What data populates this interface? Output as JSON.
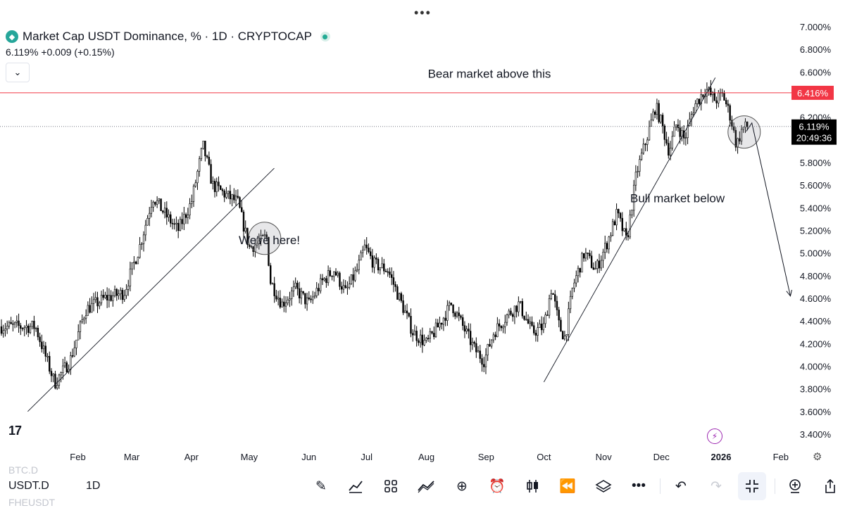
{
  "header": {
    "title": "Market Cap USDT Dominance, % · 1D · CRYPTOCAP",
    "price_line": "6.119%  +0.009 (+0.15%)"
  },
  "price_scale": {
    "ticks": [
      "7.000%",
      "6.800%",
      "6.600%",
      "6.400%",
      "6.200%",
      "6.000%",
      "5.800%",
      "5.600%",
      "5.400%",
      "5.200%",
      "5.000%",
      "4.800%",
      "4.600%",
      "4.400%",
      "4.200%",
      "4.000%",
      "3.800%",
      "3.600%",
      "3.400%"
    ],
    "red_line_label": "6.416%",
    "current_price_label": "6.119%",
    "countdown_label": "20:49:36"
  },
  "time_scale": {
    "labels": [
      "Feb",
      "Mar",
      "Apr",
      "May",
      "Jun",
      "Jul",
      "Aug",
      "Sep",
      "Oct",
      "Nov",
      "Dec",
      "2026",
      "Feb"
    ]
  },
  "annotations": {
    "bear": "Bear market above this",
    "here": "We're here!",
    "bull": "Bull market below"
  },
  "colors": {
    "resistance_line": "#f23645",
    "candle": "#000000",
    "price_badge": "#000000"
  },
  "bottom_bar": {
    "symbol_above": "BTC.D",
    "symbol": "USDT.D",
    "symbol_below": "FHEUSDT",
    "timeframe": "1D",
    "tools": [
      "brush-icon",
      "indicators-icon",
      "layouts-icon",
      "drawing-icon",
      "add-icon",
      "alert-icon",
      "candles-icon",
      "replay-icon",
      "layers-icon",
      "more-icon",
      "undo-icon",
      "redo-icon",
      "fullscreen-exit-icon",
      "zoom-icon",
      "share-icon"
    ]
  },
  "chart_data": {
    "type": "candlestick",
    "title": "Market Cap USDT Dominance, % · 1D · CRYPTOCAP",
    "ylim": [
      3.4,
      7.0
    ],
    "x_tick_labels": [
      "Feb",
      "Mar",
      "Apr",
      "May",
      "Jun",
      "Jul",
      "Aug",
      "Sep",
      "Oct",
      "Nov",
      "Dec",
      "2026",
      "Feb"
    ],
    "close_path": [
      [
        "2025-01-10",
        4.35
      ],
      [
        "2025-01-20",
        3.85
      ],
      [
        "2025-01-28",
        4.05
      ],
      [
        "2025-02-05",
        4.5
      ],
      [
        "2025-02-15",
        4.6
      ],
      [
        "2025-02-25",
        4.65
      ],
      [
        "2025-03-05",
        5.05
      ],
      [
        "2025-03-12",
        5.5
      ],
      [
        "2025-03-18",
        5.35
      ],
      [
        "2025-03-25",
        5.2
      ],
      [
        "2025-04-01",
        5.45
      ],
      [
        "2025-04-07",
        5.95
      ],
      [
        "2025-04-12",
        5.6
      ],
      [
        "2025-04-20",
        5.5
      ],
      [
        "2025-04-25",
        5.45
      ],
      [
        "2025-05-01",
        5.05
      ],
      [
        "2025-05-07",
        5.1
      ],
      [
        "2025-05-10",
        5.15
      ],
      [
        "2025-05-12",
        4.75
      ],
      [
        "2025-05-18",
        4.55
      ],
      [
        "2025-05-25",
        4.68
      ],
      [
        "2025-06-01",
        4.55
      ],
      [
        "2025-06-08",
        4.75
      ],
      [
        "2025-06-14",
        4.85
      ],
      [
        "2025-06-20",
        4.65
      ],
      [
        "2025-06-26",
        4.85
      ],
      [
        "2025-06-30",
        5.05
      ],
      [
        "2025-07-05",
        4.9
      ],
      [
        "2025-07-12",
        4.85
      ],
      [
        "2025-07-18",
        4.6
      ],
      [
        "2025-07-25",
        4.3
      ],
      [
        "2025-08-01",
        4.2
      ],
      [
        "2025-08-07",
        4.35
      ],
      [
        "2025-08-14",
        4.55
      ],
      [
        "2025-08-20",
        4.35
      ],
      [
        "2025-08-26",
        4.15
      ],
      [
        "2025-08-31",
        4.05
      ],
      [
        "2025-09-05",
        4.3
      ],
      [
        "2025-09-12",
        4.45
      ],
      [
        "2025-09-18",
        4.55
      ],
      [
        "2025-09-25",
        4.3
      ],
      [
        "2025-10-01",
        4.35
      ],
      [
        "2025-10-05",
        4.7
      ],
      [
        "2025-10-09",
        4.35
      ],
      [
        "2025-10-12",
        4.25
      ],
      [
        "2025-10-16",
        4.7
      ],
      [
        "2025-10-22",
        5.0
      ],
      [
        "2025-10-28",
        4.85
      ],
      [
        "2025-11-03",
        5.1
      ],
      [
        "2025-11-08",
        5.35
      ],
      [
        "2025-11-13",
        5.1
      ],
      [
        "2025-11-18",
        5.7
      ],
      [
        "2025-11-24",
        6.05
      ],
      [
        "2025-11-28",
        6.3
      ],
      [
        "2025-12-01",
        6.15
      ],
      [
        "2025-12-05",
        5.9
      ],
      [
        "2025-12-09",
        6.15
      ],
      [
        "2025-12-13",
        6.0
      ],
      [
        "2025-12-18",
        6.3
      ],
      [
        "2025-12-24",
        6.45
      ],
      [
        "2025-12-29",
        6.35
      ],
      [
        "2026-01-02",
        6.4
      ],
      [
        "2026-01-06",
        6.2
      ],
      [
        "2026-01-09",
        5.95
      ],
      [
        "2026-01-12",
        6.1
      ],
      [
        "2026-01-15",
        6.12
      ]
    ],
    "horizontal_lines": [
      {
        "value": 6.416,
        "color": "#f23645",
        "style": "solid"
      },
      {
        "value": 6.119,
        "color": "#787b86",
        "style": "dotted"
      }
    ],
    "trendlines": [
      {
        "from": [
          "2025-01-06",
          3.6
        ],
        "to": [
          "2025-05-14",
          5.75
        ]
      },
      {
        "from": [
          "2025-10-01",
          3.86
        ],
        "to": [
          "2025-12-29",
          6.55
        ]
      }
    ],
    "projection_arrow": {
      "from": [
        "2026-01-17",
        6.15
      ],
      "to": [
        "2026-02-06",
        4.62
      ]
    },
    "circles": [
      {
        "center": [
          "2025-05-09",
          5.13
        ]
      },
      {
        "center": [
          "2026-01-13",
          6.07
        ]
      }
    ]
  }
}
